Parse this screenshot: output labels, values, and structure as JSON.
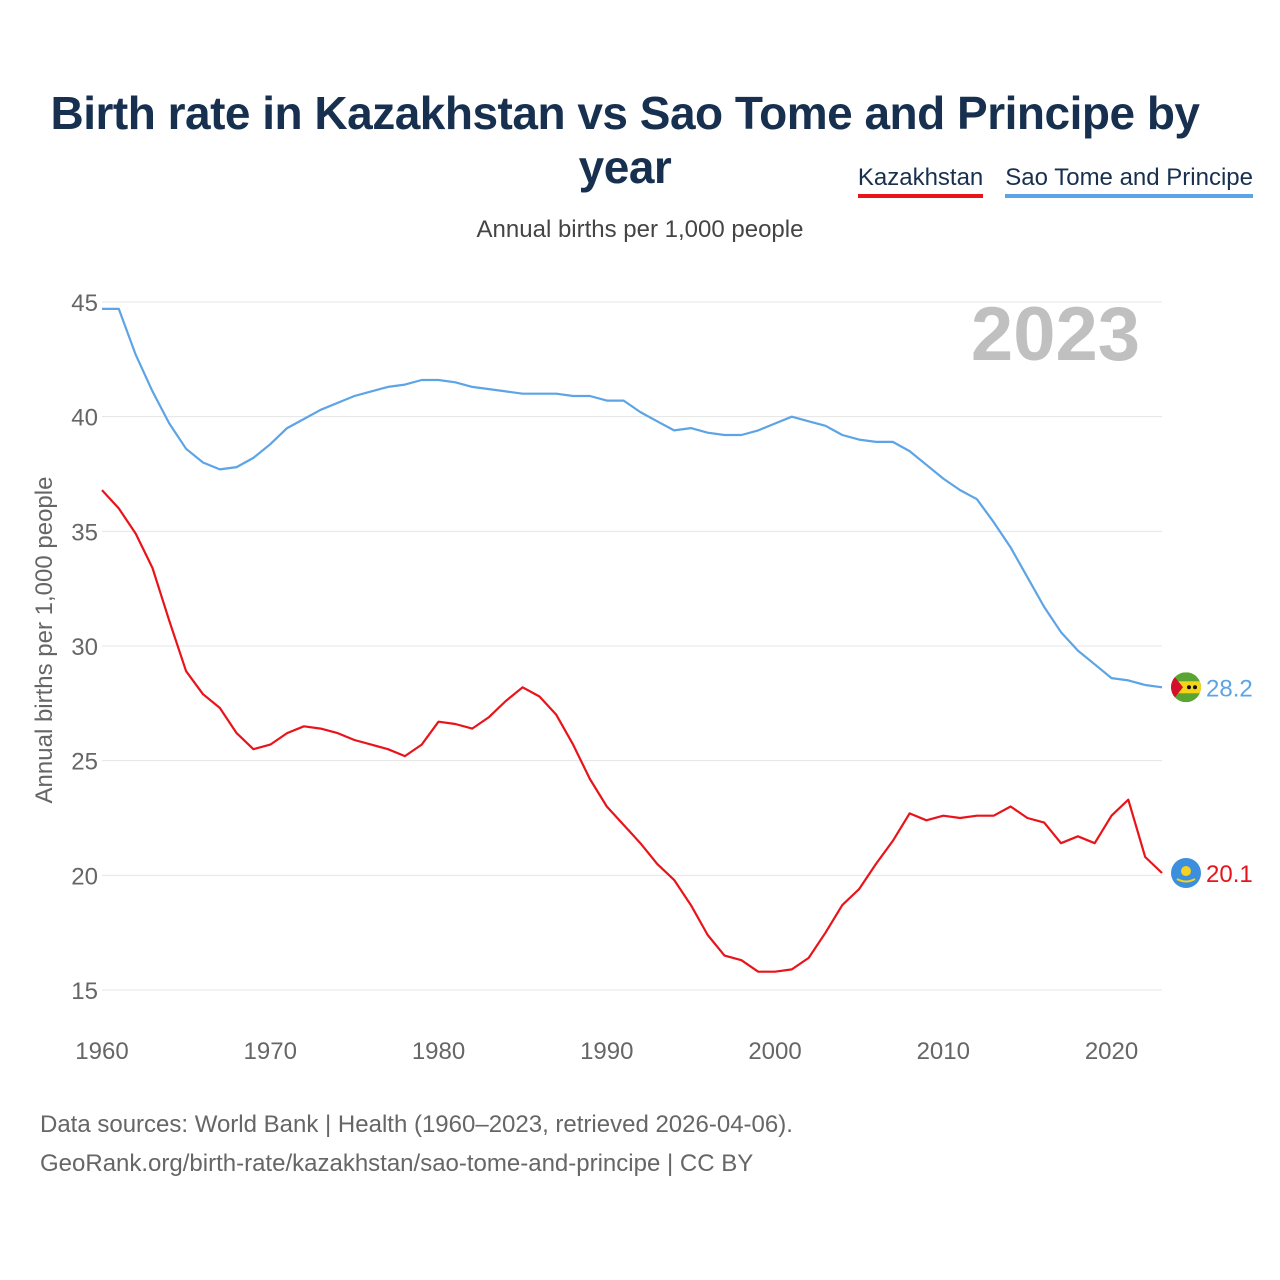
{
  "title": "Birth rate in Kazakhstan vs Sao Tome and Principe by year",
  "legend": {
    "kazakhstan": "Kazakhstan",
    "sao_tome": "Sao Tome and Principe"
  },
  "subtitle": "Annual births per 1,000 people",
  "colors": {
    "kazakhstan": "#e8141a",
    "sao_tome": "#5ca4e6",
    "year": "#c0c0c0",
    "axis_text": "#666666",
    "grid": "#e4e4e4"
  },
  "chart_data": {
    "type": "line",
    "title": "Birth rate in Kazakhstan vs Sao Tome and Principe by year",
    "ylabel": "Annual births per 1,000 people",
    "xlabel": "",
    "xlim": [
      1960,
      2023
    ],
    "ylim": [
      15,
      45
    ],
    "x_ticks": [
      1960,
      1970,
      1980,
      1990,
      2000,
      2010,
      2020
    ],
    "y_ticks": [
      15,
      20,
      25,
      30,
      35,
      40,
      45
    ],
    "year_label": "2023",
    "x": [
      1960,
      1961,
      1962,
      1963,
      1964,
      1965,
      1966,
      1967,
      1968,
      1969,
      1970,
      1971,
      1972,
      1973,
      1974,
      1975,
      1976,
      1977,
      1978,
      1979,
      1980,
      1981,
      1982,
      1983,
      1984,
      1985,
      1986,
      1987,
      1988,
      1989,
      1990,
      1991,
      1992,
      1993,
      1994,
      1995,
      1996,
      1997,
      1998,
      1999,
      2000,
      2001,
      2002,
      2003,
      2004,
      2005,
      2006,
      2007,
      2008,
      2009,
      2010,
      2011,
      2012,
      2013,
      2014,
      2015,
      2016,
      2017,
      2018,
      2019,
      2020,
      2021,
      2022,
      2023
    ],
    "series": [
      {
        "name": "Kazakhstan",
        "color": "#e8141a",
        "end_label": "20.1",
        "values": [
          36.8,
          36.0,
          34.9,
          33.4,
          31.1,
          28.9,
          27.9,
          27.3,
          26.2,
          25.5,
          25.7,
          26.2,
          26.5,
          26.4,
          26.2,
          25.9,
          25.7,
          25.5,
          25.2,
          25.7,
          26.7,
          26.6,
          26.4,
          26.9,
          27.6,
          28.2,
          27.8,
          27.0,
          25.7,
          24.2,
          23.0,
          22.2,
          21.4,
          20.5,
          19.8,
          18.7,
          17.4,
          16.5,
          16.3,
          15.8,
          15.8,
          15.9,
          16.4,
          17.5,
          18.7,
          19.4,
          20.5,
          21.5,
          22.7,
          22.4,
          22.6,
          22.5,
          22.6,
          22.6,
          23.0,
          22.5,
          22.3,
          21.4,
          21.7,
          21.4,
          22.6,
          23.3,
          20.8,
          20.1
        ]
      },
      {
        "name": "Sao Tome and Principe",
        "color": "#5ca4e6",
        "end_label": "28.2",
        "values": [
          44.7,
          44.7,
          42.7,
          41.1,
          39.7,
          38.6,
          38.0,
          37.7,
          37.8,
          38.2,
          38.8,
          39.5,
          39.9,
          40.3,
          40.6,
          40.9,
          41.1,
          41.3,
          41.4,
          41.6,
          41.6,
          41.5,
          41.3,
          41.2,
          41.1,
          41.0,
          41.0,
          41.0,
          40.9,
          40.9,
          40.7,
          40.7,
          40.2,
          39.8,
          39.4,
          39.5,
          39.3,
          39.2,
          39.2,
          39.4,
          39.7,
          40.0,
          39.8,
          39.6,
          39.2,
          39.0,
          38.9,
          38.9,
          38.5,
          37.9,
          37.3,
          36.8,
          36.4,
          35.4,
          34.3,
          33.0,
          31.7,
          30.6,
          29.8,
          29.2,
          28.6,
          28.5,
          28.3,
          28.2
        ]
      }
    ]
  },
  "footer": {
    "line1": "Data sources: World Bank | Health (1960–2023, retrieved 2026-04-06).",
    "line2": "GeoRank.org/birth-rate/kazakhstan/sao-tome-and-principe | CC BY"
  }
}
